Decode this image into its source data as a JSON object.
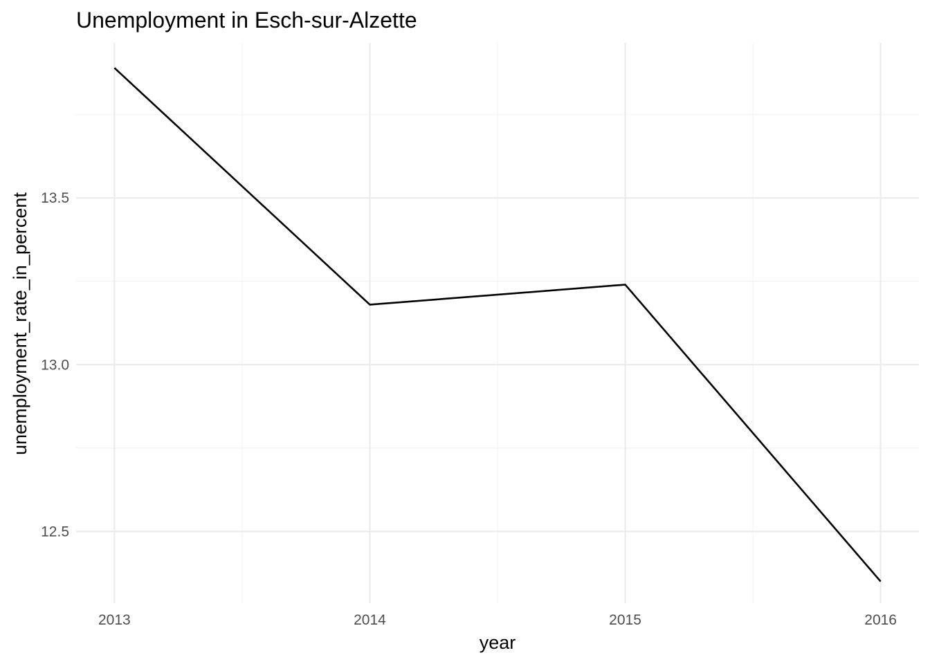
{
  "chart_data": {
    "type": "line",
    "title": "Unemployment in Esch-sur-Alzette",
    "xlabel": "year",
    "ylabel": "unemployment_rate_in_percent",
    "x": [
      2013,
      2014,
      2015,
      2016
    ],
    "series": [
      {
        "values": [
          13.89,
          13.18,
          13.24,
          12.35
        ],
        "color": "#000000"
      }
    ],
    "x_ticks": [
      "2013",
      "2014",
      "2015",
      "2016"
    ],
    "y_ticks": [
      "12.5",
      "13.0",
      "13.5"
    ],
    "y_tick_values": [
      12.5,
      13.0,
      13.5
    ],
    "xlim": [
      2012.85,
      2016.15
    ],
    "ylim": [
      12.285,
      13.965
    ],
    "grid": true,
    "background": "#ffffff",
    "grid_color": "#ebebeb"
  }
}
